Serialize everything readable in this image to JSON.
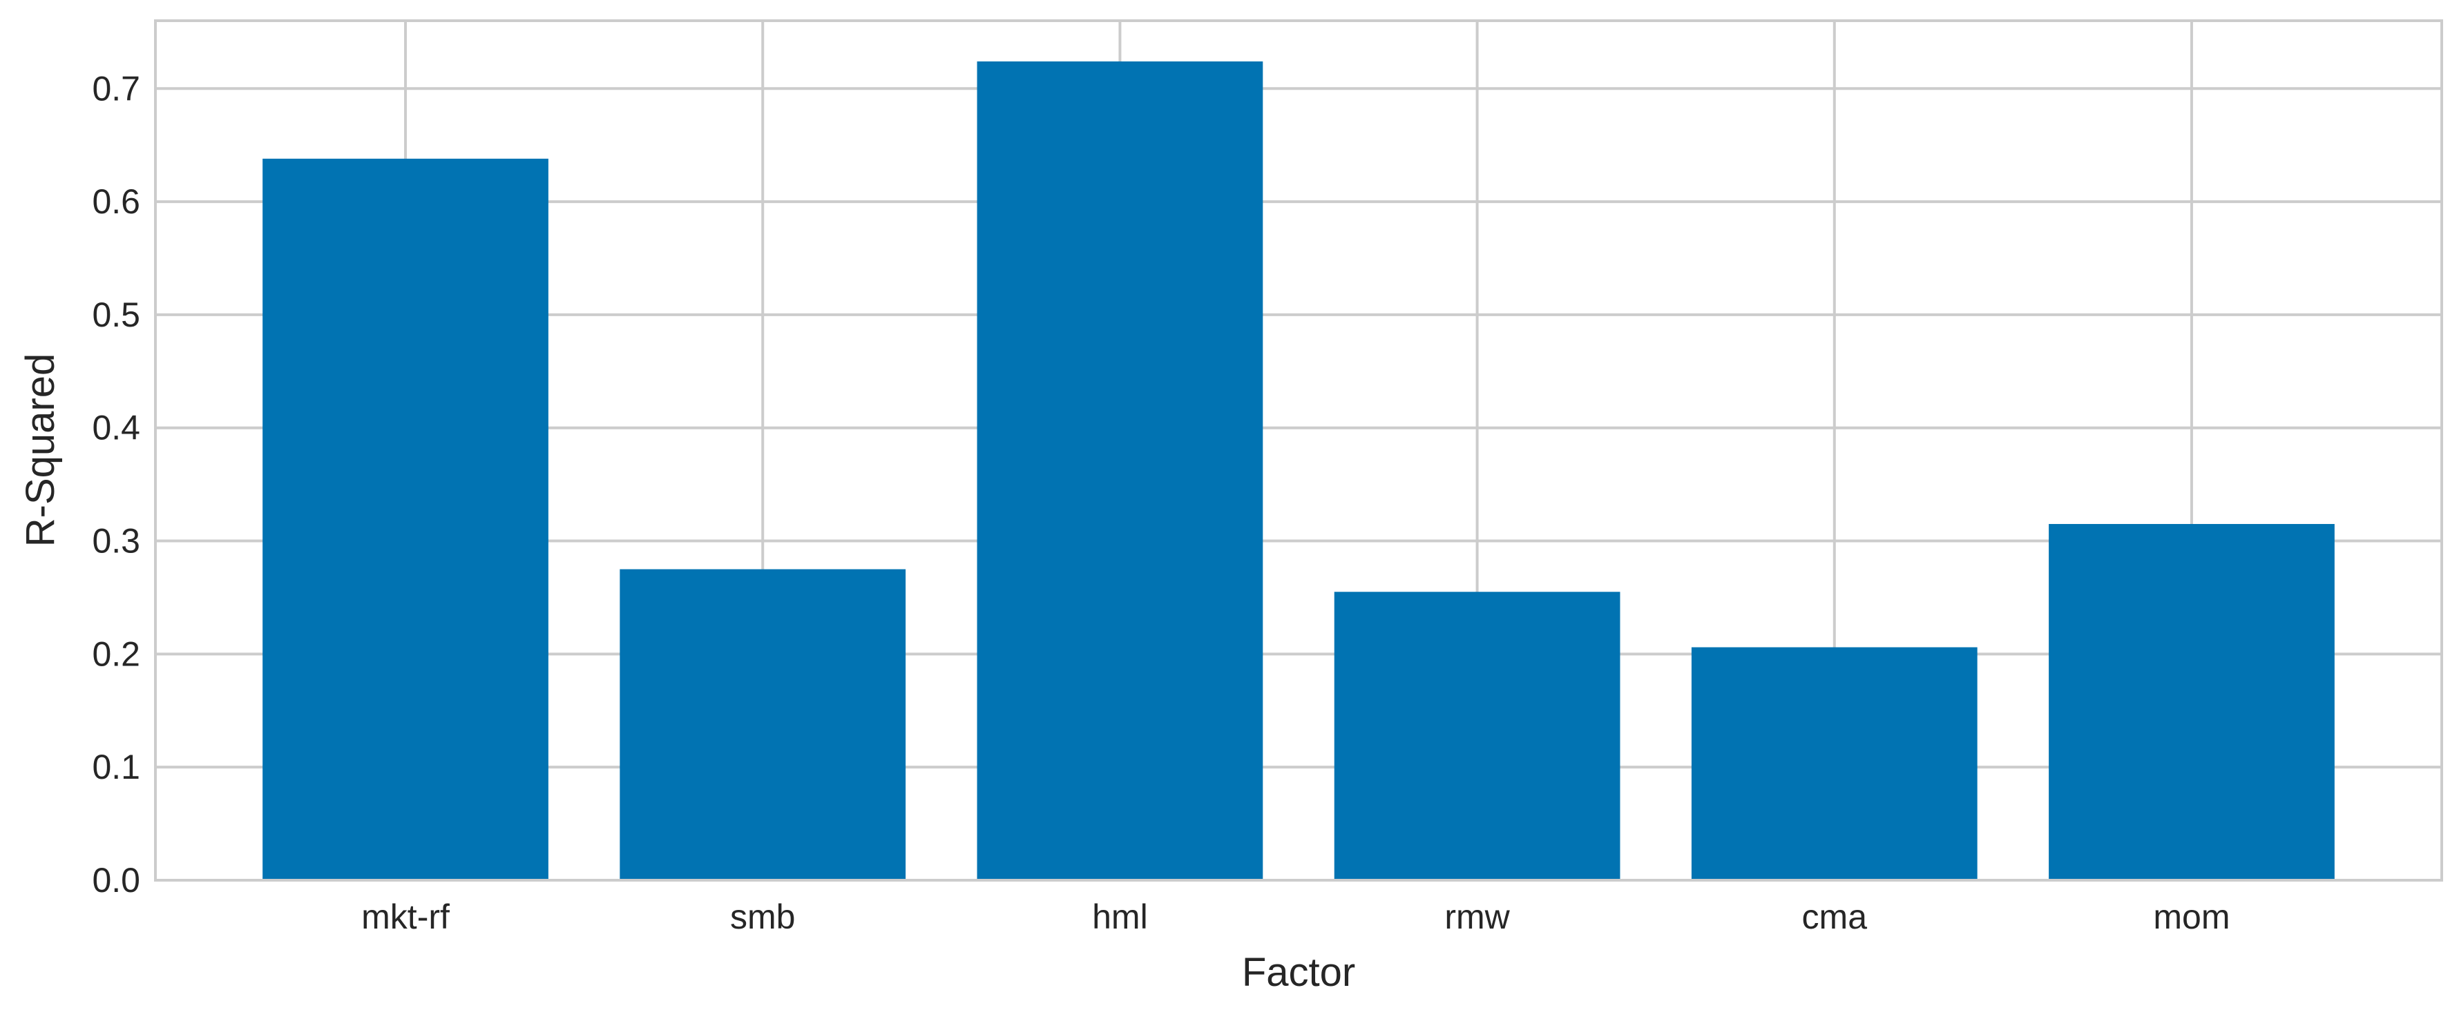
{
  "chart_data": {
    "type": "bar",
    "title": "",
    "xlabel": "Factor",
    "ylabel": "R-Squared",
    "categories": [
      "mkt-rf",
      "smb",
      "hml",
      "rmw",
      "cma",
      "mom"
    ],
    "values": [
      0.638,
      0.275,
      0.724,
      0.255,
      0.206,
      0.315
    ],
    "ylim": [
      0,
      0.76
    ],
    "yticks": [
      0.0,
      0.1,
      0.2,
      0.3,
      0.4,
      0.5,
      0.6,
      0.7
    ],
    "ytick_labels": [
      "0.0",
      "0.1",
      "0.2",
      "0.3",
      "0.4",
      "0.5",
      "0.6",
      "0.7"
    ],
    "grid": true,
    "legend": "none",
    "bar_color": "#0173b2",
    "grid_color": "#cccccc",
    "background_color": "#ffffff"
  }
}
